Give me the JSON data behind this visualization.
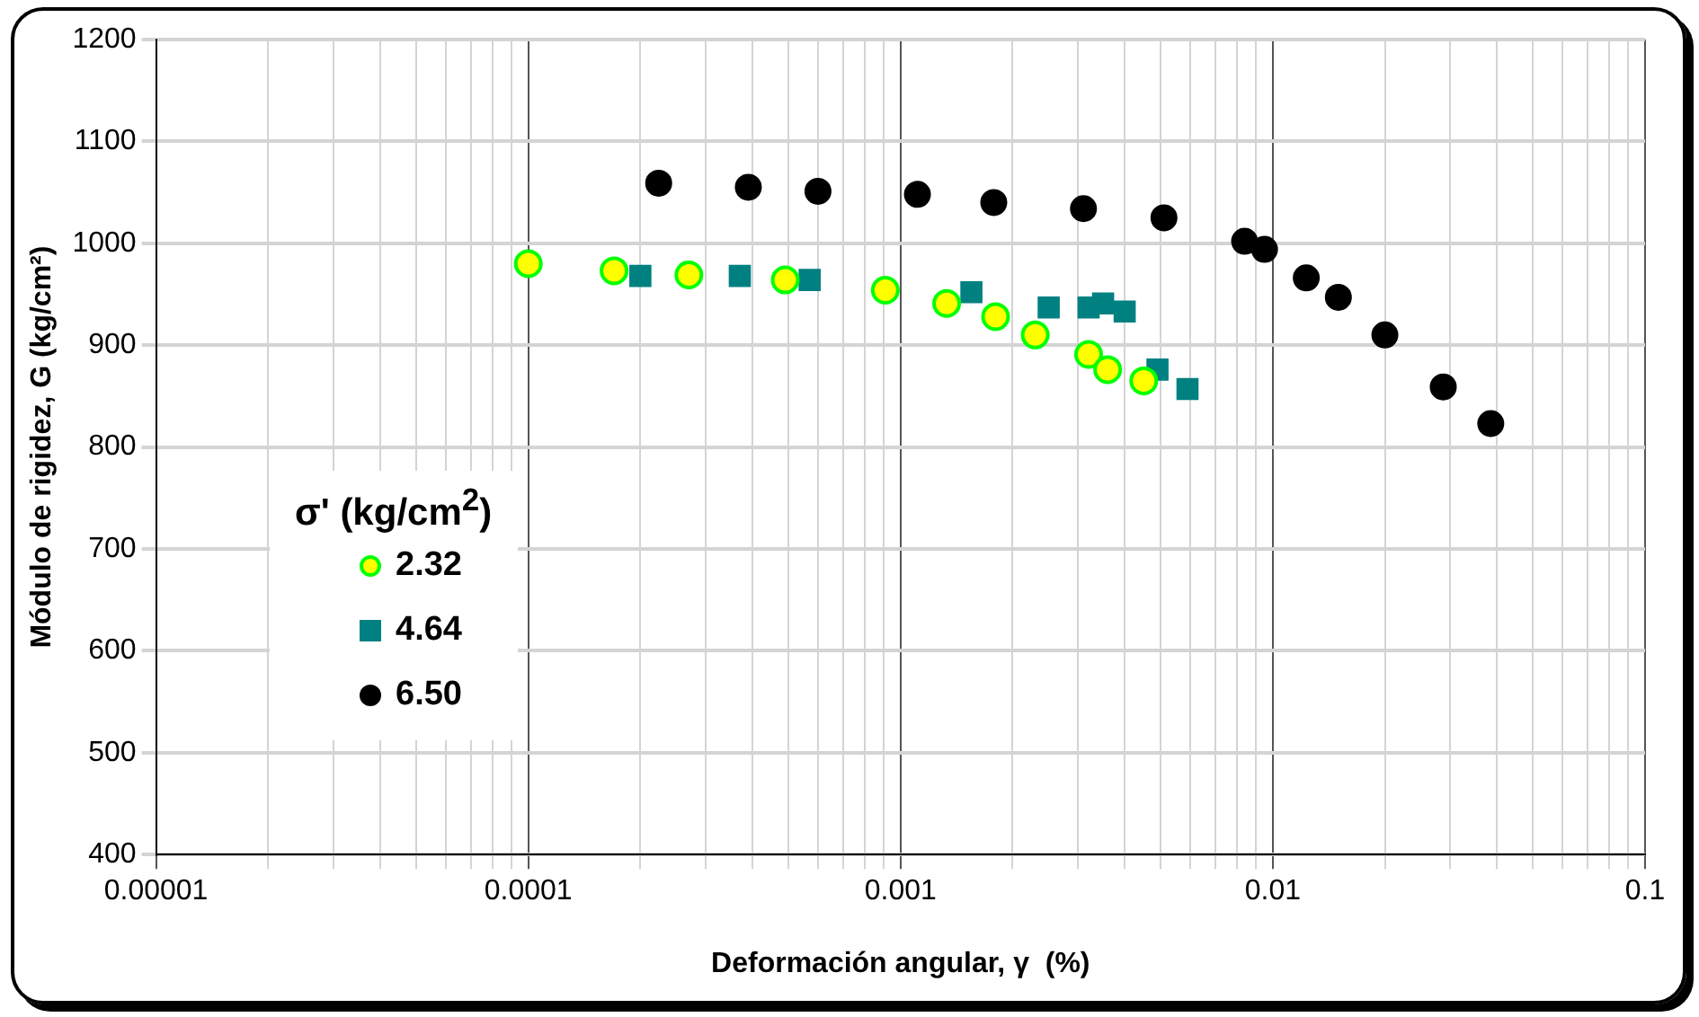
{
  "chart_data": {
    "type": "scatter",
    "xlabel": "Deformación angular, γ  (%)",
    "ylabel": "Módulo de rigidez, G (kg/cm²)",
    "legend_title": "σ' (kg/cm$^{2}$)",
    "legend": "left",
    "log": "x",
    "grid": true,
    "xlim": [
      1e-05,
      0.1
    ],
    "ylim": [
      400,
      1200
    ],
    "yticks": [
      400,
      500,
      600,
      700,
      800,
      900,
      1000,
      1100,
      1200
    ],
    "xticks": [
      {
        "value": 1e-05,
        "label": "0.00001"
      },
      {
        "value": 2e-05,
        "label": null
      },
      {
        "value": 3e-05,
        "label": null
      },
      {
        "value": 4e-05,
        "label": null
      },
      {
        "value": 5e-05,
        "label": null
      },
      {
        "value": 6e-05,
        "label": null
      },
      {
        "value": 7e-05,
        "label": null
      },
      {
        "value": 8e-05,
        "label": null
      },
      {
        "value": 9e-05,
        "label": null
      },
      0.0001,
      {
        "value": 0.0002,
        "label": null
      },
      {
        "value": 0.0003,
        "label": null
      },
      {
        "value": 0.0004,
        "label": null
      },
      {
        "value": 0.0005,
        "label": null
      },
      {
        "value": 0.0006,
        "label": null
      },
      {
        "value": 0.0007,
        "label": null
      },
      {
        "value": 0.0008,
        "label": null
      },
      {
        "value": 0.0009,
        "label": null
      },
      0.001,
      {
        "value": 0.002,
        "label": null
      },
      {
        "value": 0.003,
        "label": null
      },
      {
        "value": 0.004,
        "label": null
      },
      {
        "value": 0.005,
        "label": null
      },
      {
        "value": 0.006,
        "label": null
      },
      {
        "value": 0.007,
        "label": null
      },
      {
        "value": 0.008,
        "label": null
      },
      {
        "value": 0.009,
        "label": null
      },
      0.01,
      {
        "value": 0.02,
        "label": null
      },
      {
        "value": 0.03,
        "label": null
      },
      {
        "value": 0.04,
        "label": null
      },
      {
        "value": 0.05,
        "label": null
      },
      {
        "value": 0.06,
        "label": null
      },
      {
        "value": 0.07,
        "label": null
      },
      {
        "value": 0.08,
        "label": null
      },
      {
        "value": 0.09,
        "label": null
      },
      0.1
    ],
    "series": [
      {
        "name": "2.32",
        "color": "#ffff00",
        "marker": "circle",
        "x": [
          0.0001,
          0.00017,
          0.00027,
          0.00049,
          0.00091,
          0.00133,
          0.0018,
          0.0023,
          0.0032,
          0.0036,
          0.0045
        ],
        "values": [
          980,
          973,
          969,
          964,
          954,
          941,
          928,
          910,
          891,
          876,
          865
        ]
      },
      {
        "name": "4.64",
        "color": "#008080",
        "marker": "square",
        "x": [
          0.0002,
          0.00037,
          0.00057,
          0.00155,
          0.0025,
          0.0032,
          0.0035,
          0.004,
          0.0049,
          0.0059
        ],
        "values": [
          968,
          968,
          964,
          952,
          937,
          937,
          941,
          933,
          876,
          857
        ]
      },
      {
        "name": "6.50",
        "color": "#000000",
        "marker": "circle",
        "x": [
          0.000224,
          0.00039,
          0.0006,
          0.00111,
          0.00178,
          0.0031,
          0.0051,
          0.0084,
          0.0095,
          0.0123,
          0.015,
          0.02,
          0.0287,
          0.0385
        ],
        "values": [
          1059,
          1055,
          1051,
          1048,
          1040,
          1034,
          1025,
          1002,
          994,
          966,
          947,
          910,
          859,
          823
        ]
      }
    ]
  }
}
